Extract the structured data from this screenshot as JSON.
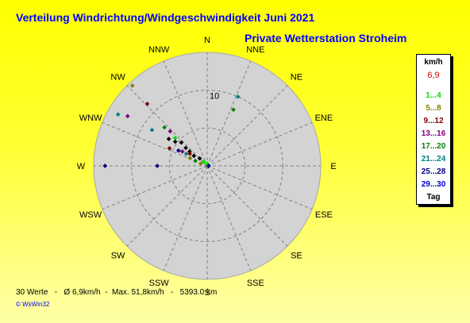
{
  "header": {
    "title": "Verteilung Windrichtung/Windgeschwindigkeit  Juni 2021",
    "subtitle": "Private Wetterstation Stroheim"
  },
  "legend": {
    "unit": "km/h",
    "avg": "6,9",
    "avg_color": "#cc0000",
    "classes": [
      {
        "label": "1...4",
        "color": "#00dd00"
      },
      {
        "label": "5...8",
        "color": "#808000"
      },
      {
        "label": "9...12",
        "color": "#800000"
      },
      {
        "label": "13...16",
        "color": "#800080"
      },
      {
        "label": "17...20",
        "color": "#008000"
      },
      {
        "label": "21...24",
        "color": "#008080"
      },
      {
        "label": "25...28",
        "color": "#000080"
      },
      {
        "label": "29...30",
        "color": "#0000cc"
      },
      {
        "label": "Tag",
        "color": "#000000"
      }
    ]
  },
  "footer": {
    "count": "30 Werte",
    "sep1": "-",
    "avg": "Ø 6,9km/h",
    "sep2": "-",
    "max": "Max. 51,8km/h",
    "sep3": "-",
    "distance": "5393.0 km"
  },
  "brand": "© WsWin32",
  "chart_data": {
    "type": "scatter",
    "polar": true,
    "radial_max": 15,
    "radial_tick_label": "10",
    "radial_tick_value": 10,
    "directions": [
      "N",
      "NNE",
      "NE",
      "ENE",
      "E",
      "ESE",
      "SE",
      "SSE",
      "S",
      "SSW",
      "SW",
      "WSW",
      "W",
      "WNW",
      "NW",
      "NNW"
    ],
    "colors": {
      "plot_bg": "#d3d3d3",
      "grid": "#808080"
    },
    "points": [
      {
        "dir_deg": 300,
        "r": 13.6,
        "color": "#008080"
      },
      {
        "dir_deg": 302,
        "r": 12.4,
        "color": "#800080"
      },
      {
        "dir_deg": 270,
        "r": 13.5,
        "color": "#000080"
      },
      {
        "dir_deg": 270,
        "r": 6.6,
        "color": "#000080"
      },
      {
        "dir_deg": 317,
        "r": 14.5,
        "color": "#808000"
      },
      {
        "dir_deg": 316,
        "r": 11.4,
        "color": "#800000"
      },
      {
        "dir_deg": 312,
        "r": 7.6,
        "color": "#008000"
      },
      {
        "dir_deg": 313,
        "r": 6.7,
        "color": "#800080"
      },
      {
        "dir_deg": 311,
        "r": 5.6,
        "color": "#00dd00"
      },
      {
        "dir_deg": 312,
        "r": 4.6,
        "color": "#000000"
      },
      {
        "dir_deg": 310,
        "r": 3.7,
        "color": "#000000"
      },
      {
        "dir_deg": 309,
        "r": 3.0,
        "color": "#000000"
      },
      {
        "dir_deg": 307,
        "r": 2.2,
        "color": "#000000"
      },
      {
        "dir_deg": 303,
        "r": 8.7,
        "color": "#008080"
      },
      {
        "dir_deg": 295,
        "r": 5.5,
        "color": "#800000"
      },
      {
        "dir_deg": 298,
        "r": 4.3,
        "color": "#000080"
      },
      {
        "dir_deg": 300,
        "r": 3.8,
        "color": "#800080"
      },
      {
        "dir_deg": 300,
        "r": 3.2,
        "color": "#008080"
      },
      {
        "dir_deg": 294,
        "r": 2.5,
        "color": "#808000"
      },
      {
        "dir_deg": 293,
        "r": 1.7,
        "color": "#008000"
      },
      {
        "dir_deg": 290,
        "r": 0.9,
        "color": "#808000"
      },
      {
        "dir_deg": 305,
        "r": 2.8,
        "color": "#800000"
      },
      {
        "dir_deg": 315,
        "r": 1.4,
        "color": "#000000"
      },
      {
        "dir_deg": 320,
        "r": 0.7,
        "color": "#00dd00"
      },
      {
        "dir_deg": 0,
        "r": 0.3,
        "color": "#00dd00"
      },
      {
        "dir_deg": 90,
        "r": 0.2,
        "color": "#000080"
      },
      {
        "dir_deg": 305,
        "r": 6.2,
        "color": "#000000"
      },
      {
        "dir_deg": 307,
        "r": 5.3,
        "color": "#000000"
      },
      {
        "dir_deg": 24,
        "r": 10.0,
        "color": "#008080"
      },
      {
        "dir_deg": 25,
        "r": 8.2,
        "color": "#008000"
      }
    ]
  }
}
